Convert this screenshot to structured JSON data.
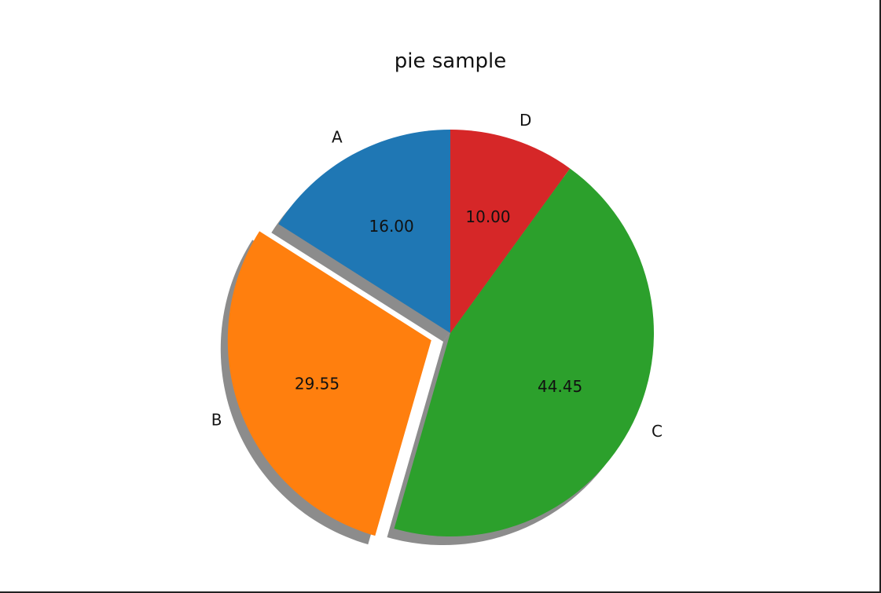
{
  "chart_data": {
    "type": "pie",
    "title": "pie sample",
    "labels": [
      "A",
      "B",
      "C",
      "D"
    ],
    "values": [
      16.0,
      29.55,
      44.45,
      10.0
    ],
    "value_labels": [
      "16.00",
      "29.55",
      "44.45",
      "10.00"
    ],
    "explode": [
      0,
      0.1,
      0,
      0
    ],
    "shadow": true,
    "start_angle_deg": 90,
    "direction": "counterclockwise",
    "colors": [
      "#1f77b4",
      "#ff7f0e",
      "#2ca02c",
      "#d62728"
    ]
  }
}
